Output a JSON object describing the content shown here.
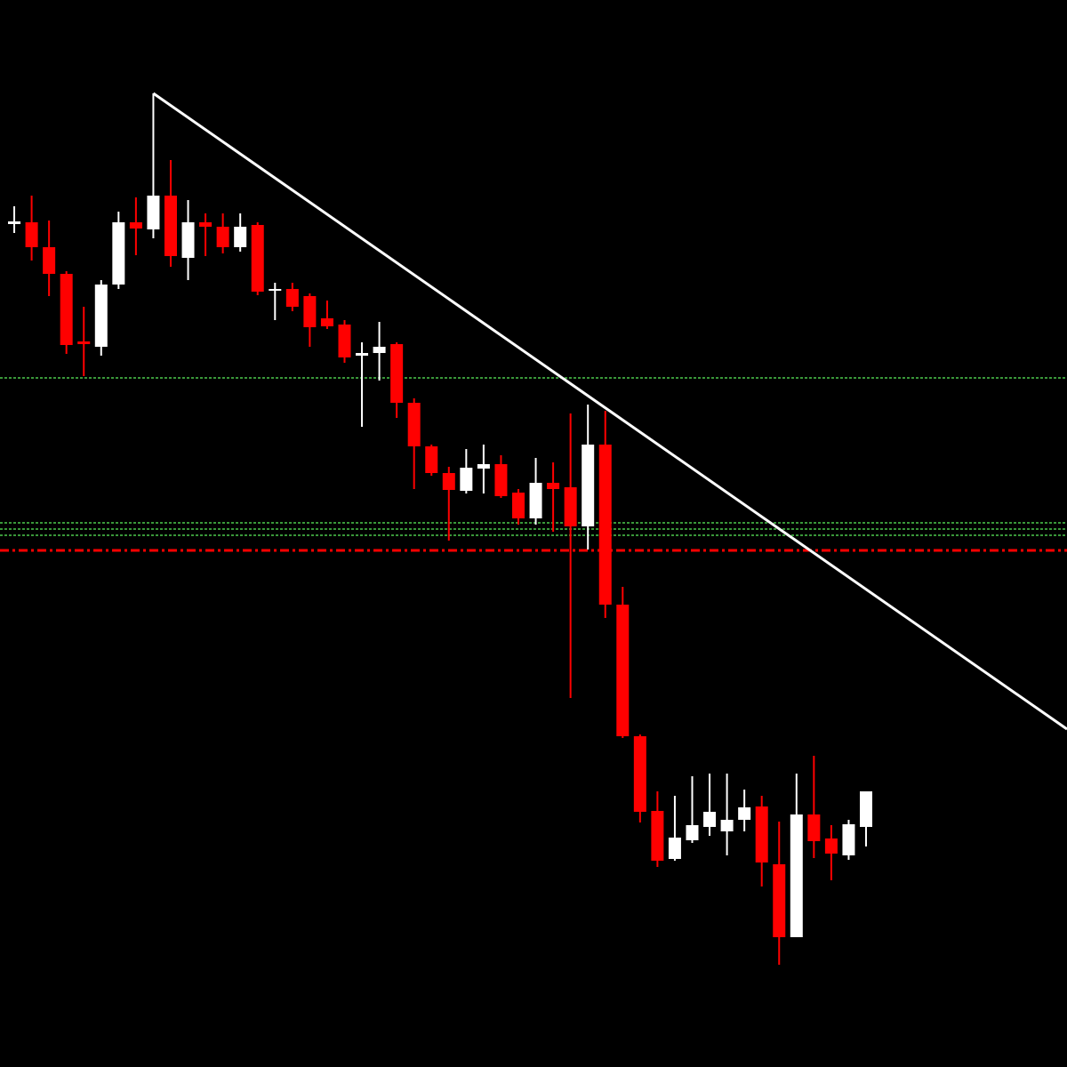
{
  "chart_data": {
    "type": "candlestick",
    "xlim": [
      -0.82,
      60.56
    ],
    "ylim": [
      0,
      1200
    ],
    "up_color": "#ffffff",
    "down_color": "#ff0000",
    "open": [
      948,
      950,
      922,
      892,
      816,
      810,
      880,
      950,
      942,
      980,
      910,
      950,
      945,
      922,
      947,
      873,
      875,
      867,
      842,
      835,
      800,
      803,
      813,
      747,
      698,
      668,
      648,
      673,
      678,
      646,
      617,
      657,
      652,
      608,
      700,
      520,
      372,
      288,
      234,
      255,
      270,
      265,
      278,
      293,
      228,
      146,
      284,
      257,
      238,
      270
    ],
    "high": [
      968,
      980,
      952,
      895,
      855,
      885,
      962,
      978,
      1095,
      1020,
      975,
      960,
      960,
      960,
      950,
      882,
      882,
      870,
      862,
      840,
      815,
      838,
      815,
      752,
      700,
      675,
      695,
      700,
      688,
      650,
      685,
      680,
      735,
      745,
      738,
      540,
      374,
      310,
      305,
      327,
      330,
      330,
      312,
      305,
      276,
      330,
      350,
      272,
      278,
      310
    ],
    "low": [
      938,
      907,
      867,
      802,
      777,
      800,
      875,
      913,
      932,
      900,
      885,
      912,
      915,
      917,
      868,
      840,
      850,
      810,
      830,
      792,
      720,
      772,
      730,
      650,
      665,
      592,
      645,
      645,
      640,
      610,
      610,
      602,
      415,
      582,
      505,
      370,
      275,
      225,
      232,
      252,
      260,
      238,
      265,
      203,
      115,
      146,
      235,
      210,
      233,
      248
    ],
    "close": [
      951,
      922,
      892,
      812,
      813,
      880,
      950,
      943,
      980,
      912,
      950,
      945,
      922,
      945,
      872,
      875,
      855,
      832,
      833,
      798,
      803,
      810,
      747,
      698,
      668,
      649,
      674,
      678,
      642,
      617,
      657,
      650,
      608,
      700,
      520,
      372,
      287,
      232,
      258,
      272,
      287,
      278,
      292,
      230,
      146,
      284,
      254,
      240,
      273,
      310
    ],
    "hlines": [
      {
        "value": 775,
        "color": "#4cc94c",
        "style": "dotted"
      },
      {
        "value": 612,
        "color": "#4cc94c",
        "style": "dotted"
      },
      {
        "value": 605,
        "color": "#4cc94c",
        "style": "dotted"
      },
      {
        "value": 598,
        "color": "#4cc94c",
        "style": "dotted"
      },
      {
        "value": 581,
        "color": "#ff0000",
        "style": "dashdot"
      }
    ],
    "trendline": {
      "x": [
        8,
        60.56
      ],
      "values": [
        1095,
        380
      ],
      "color": "#ffffff"
    }
  }
}
